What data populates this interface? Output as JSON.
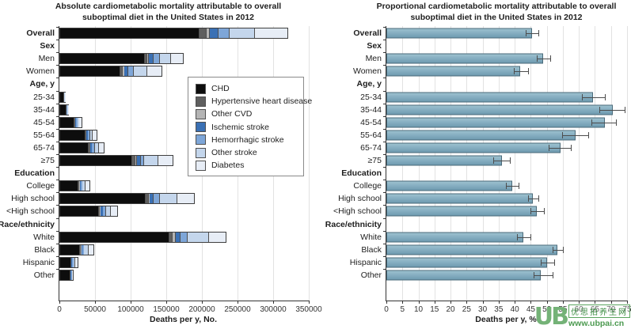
{
  "watermark": {
    "logo_text": "UB",
    "site_name": "优思拍养生网",
    "site_url": "www.ubpai.cn",
    "color": "#4f9d4f"
  },
  "chart_data": [
    {
      "type": "bar",
      "orientation": "horizontal-stacked",
      "title": "Absolute cardiometabolic mortality attributable to overall suboptimal diet in the United States in 2012",
      "xlabel": "Deaths per y, No.",
      "xlim": [
        0,
        350000
      ],
      "xticks": [
        0,
        50000,
        100000,
        150000,
        200000,
        250000,
        300000,
        350000
      ],
      "xtick_labels": [
        "0",
        "50000",
        "100000",
        "150000",
        "200000",
        "250000",
        "300000",
        "350000"
      ],
      "grid": true,
      "legend_position": "inside-right",
      "legend": [
        {
          "label": "CHD",
          "color": "#0d0d0d"
        },
        {
          "label": "Hypertensive heart disease",
          "color": "#5f5f5f"
        },
        {
          "label": "Other CVD",
          "color": "#b4b4b4"
        },
        {
          "label": "Ischemic stroke",
          "color": "#3a70b4"
        },
        {
          "label": "Hemorrhagic stroke",
          "color": "#7ea6d8"
        },
        {
          "label": "Other stroke",
          "color": "#c4d6ec"
        },
        {
          "label": "Diabetes",
          "color": "#e7edf6"
        }
      ],
      "rows": [
        {
          "label": "Overall",
          "header": false,
          "bold": true,
          "values": [
            196000,
            9500,
            5000,
            12000,
            15000,
            36000,
            45000
          ]
        },
        {
          "label": "Sex",
          "header": true
        },
        {
          "label": "Men",
          "header": false,
          "values": [
            118500,
            3600,
            2800,
            6000,
            9500,
            14800,
            17000
          ]
        },
        {
          "label": "Women",
          "header": false,
          "values": [
            84000,
            4000,
            2300,
            5500,
            7500,
            19000,
            20500
          ]
        },
        {
          "label": "Age, y",
          "header": true
        },
        {
          "label": "25-34",
          "header": false,
          "values": [
            5000,
            150,
            100,
            250,
            450,
            300,
            550
          ]
        },
        {
          "label": "35-44",
          "header": false,
          "values": [
            8500,
            300,
            150,
            400,
            900,
            500,
            750
          ]
        },
        {
          "label": "45-54",
          "header": false,
          "values": [
            20000,
            800,
            400,
            1000,
            2400,
            1900,
            3000
          ]
        },
        {
          "label": "55-64",
          "header": false,
          "values": [
            35000,
            1400,
            700,
            1800,
            3600,
            3500,
            5500
          ]
        },
        {
          "label": "65-74",
          "header": false,
          "values": [
            40000,
            1700,
            900,
            2300,
            3800,
            5500,
            7500
          ]
        },
        {
          "label": "≥75",
          "header": false,
          "values": [
            100800,
            4500,
            3000,
            4500,
            4500,
            20000,
            21000
          ]
        },
        {
          "label": "Education",
          "header": true
        },
        {
          "label": "College",
          "header": false,
          "values": [
            26000,
            900,
            500,
            1300,
            2200,
            4500,
            5500
          ]
        },
        {
          "label": "High school",
          "header": false,
          "values": [
            120000,
            4000,
            2000,
            5000,
            8800,
            25000,
            23000
          ]
        },
        {
          "label": "<High school",
          "header": false,
          "values": [
            54000,
            2000,
            1000,
            2500,
            4500,
            7500,
            8000
          ]
        },
        {
          "label": "Race/ethnicity",
          "header": true
        },
        {
          "label": "White",
          "header": false,
          "values": [
            153700,
            4500,
            3900,
            6800,
            10200,
            30200,
            22700
          ]
        },
        {
          "label": "Black",
          "header": false,
          "values": [
            27500,
            1500,
            600,
            1500,
            2500,
            6000,
            7000
          ]
        },
        {
          "label": "Hispanic",
          "header": false,
          "values": [
            15000,
            600,
            300,
            900,
            1700,
            3000,
            3500
          ]
        },
        {
          "label": "Other",
          "header": false,
          "values": [
            14000,
            400,
            200,
            600,
            1000,
            1000,
            1000
          ]
        }
      ]
    },
    {
      "type": "bar",
      "orientation": "horizontal",
      "title": "Proportional cardiometabolic mortality attributable to overall suboptimal diet in the United States in 2012",
      "xlabel": "Deaths per y, %",
      "xlim": [
        0,
        75
      ],
      "xticks": [
        0,
        5,
        10,
        15,
        20,
        25,
        30,
        35,
        40,
        45,
        50,
        55,
        60,
        65,
        70,
        75
      ],
      "grid": true,
      "bar_color": "#87afc2",
      "error_bars": true,
      "rows": [
        {
          "label": "Overall",
          "header": false,
          "bold": true,
          "value": 45.4,
          "ci": [
            43.5,
            47.4
          ]
        },
        {
          "label": "Sex",
          "header": true
        },
        {
          "label": "Men",
          "header": false,
          "value": 48.8,
          "ci": [
            46.8,
            51.0
          ]
        },
        {
          "label": "Women",
          "header": false,
          "value": 41.8,
          "ci": [
            39.8,
            44.2
          ]
        },
        {
          "label": "Age, y",
          "header": true
        },
        {
          "label": "25-34",
          "header": false,
          "value": 64.3,
          "ci": [
            61.0,
            68.0
          ]
        },
        {
          "label": "35-44",
          "header": false,
          "value": 70.5,
          "ci": [
            66.4,
            74.3
          ]
        },
        {
          "label": "45-54",
          "header": false,
          "value": 68.0,
          "ci": [
            63.8,
            71.5
          ]
        },
        {
          "label": "55-64",
          "header": false,
          "value": 59.0,
          "ci": [
            54.8,
            63.0
          ]
        },
        {
          "label": "65-74",
          "header": false,
          "value": 54.2,
          "ci": [
            50.5,
            57.5
          ]
        },
        {
          "label": "≥75",
          "header": false,
          "value": 36.0,
          "ci": [
            33.3,
            38.5
          ]
        },
        {
          "label": "Education",
          "header": true
        },
        {
          "label": "College",
          "header": false,
          "value": 39.3,
          "ci": [
            37.3,
            41.3
          ]
        },
        {
          "label": "High school",
          "header": false,
          "value": 45.7,
          "ci": [
            44.2,
            47.3
          ]
        },
        {
          "label": "<High school",
          "header": false,
          "value": 46.8,
          "ci": [
            45.0,
            49.0
          ]
        },
        {
          "label": "Race/ethnicity",
          "header": true
        },
        {
          "label": "White",
          "header": false,
          "value": 42.8,
          "ci": [
            40.8,
            44.9
          ]
        },
        {
          "label": "Black",
          "header": false,
          "value": 53.4,
          "ci": [
            51.9,
            54.9
          ]
        },
        {
          "label": "Hispanic",
          "header": false,
          "value": 50.0,
          "ci": [
            48.2,
            52.2
          ]
        },
        {
          "label": "Other",
          "header": false,
          "value": 48.0,
          "ci": [
            45.8,
            51.8
          ]
        }
      ]
    }
  ]
}
